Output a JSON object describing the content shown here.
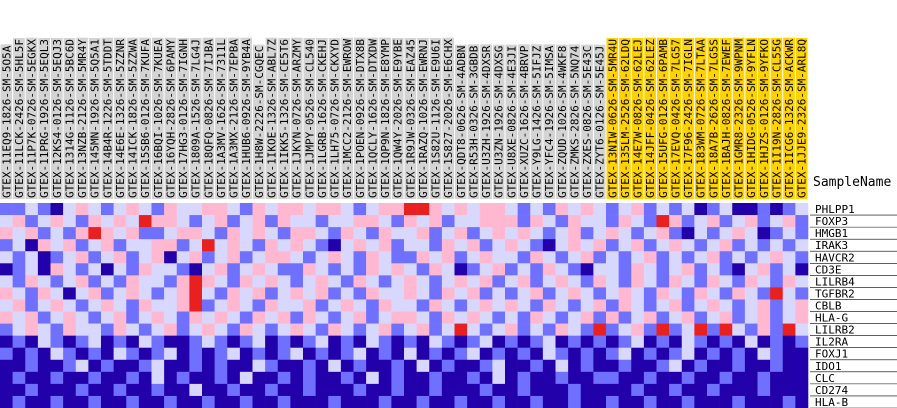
{
  "heatmap": {
    "row_header": "SampleName",
    "columns": [
      "GTEX-11EQ9-1826-SM-5O5A",
      "GTEX-11LCK-2426-SM-5HL5F",
      "GTEX-11P7K-0726-SM-5EGKX",
      "GTEX-11PRG-1926-SM-5EQL3",
      "GTEX-12KS4-0126-SM-5EQJ3",
      "GTEX-1314G-1126-SM-5BC6D",
      "GTEX-13NZB-2126-SM-5MR4Y",
      "GTEX-145MN-1926-SM-5Q5A1",
      "GTEX-14B4R-1226-SM-5TDDT",
      "GTEX-14E6E-1326-SM-5ZZNR",
      "GTEX-14ICK-1826-SM-5ZZWA",
      "GTEX-15SB6-0126-SM-7KUFA",
      "GTEX-16BQI-1026-SM-7KUEA",
      "GTEX-16YQH-2826-SM-6PAMY",
      "GTEX-17HG3-0126-SM-7IGNH",
      "GTEX-1809A-1526-SM-7LG4J",
      "GTEX-18QFQ-0826-SM-7IJBA",
      "GTEX-1A3MV-1626-SM-7311L",
      "GTEX-1A3MX-2126-SM-7EPBA",
      "GTEX-1HUB6-0926-SM-9YB4A",
      "GTEX-1H8W-2226-SM-CGQEC",
      "GTEX-1IKOE-1326-SM-ABL7Z",
      "GTEX-1IKK5-1326-SM-CE5T6",
      "GTEX-1JKYN-0726-SM-ARZMY",
      "GTEX-1JMPY-0526-SM-CL540",
      "GTEX-1LGRB-1626-SM-CKEHJ",
      "GTEX-1LH75-0726-SM-CKXYD",
      "GTEX-1MCC2-2126-SM-EWROW",
      "GTEX-1POEN-0926-SM-DTX8B",
      "GTEX-1QCLY-1626-SM-DTXDW",
      "GTEX-1QP9N-1826-SM-E8YMP",
      "GTEX-1QW4Y-2026-SM-E9YBE",
      "GTEX-1R9JW-0326-SM-EAZ45",
      "GTEX-1RAZQ-1026-SM-EWRNJ",
      "GTEX-1S82U-1126-SM-E9U6I",
      "GTEX-1S827-2026-SM-E6CHX",
      "GTEX-QDT8-0626-SM-4ADBN",
      "GTEX-R53H-0326-SM-3GBDB",
      "GTEX-U3ZH-1926-SM-4DXSR",
      "GTEX-U3ZN-1926-SM-4DXSG",
      "GTEX-U8XE-0826-SM-4E3JI",
      "GTEX-XUZC-1626-SM-4BRVP",
      "GTEX-Y9LG-1426-SM-5IFJZ",
      "GTEX-YFC4-1926-SM-5IMSA",
      "GTEX-ZQUD-1026-SM-4WKF8",
      "GTEX-ZMKS-2826-SM-5NQ74",
      "GTEX-ZXES-0826-SM-5E43C",
      "GTEX-ZYT6-0126-SM-5E45J"
    ],
    "highlighted_columns": [
      "GTEX-13NIW-0626-SM-5MR4U",
      "GTEX-135LM-2526-SM-62LDQ",
      "GTEX-14E7W-0826-SM-62LEJ",
      "GTEX-14JFF-0426-SM-62LEZ",
      "GTEX-15UFG-0126-SM-6PAMB",
      "GTEX-17EVQ-0426-SM-7LG57",
      "GTEX-17F96-2426-SM-7IGLN",
      "GTEX-183WM-0726-SM-7LTAA",
      "GTEX-18A7B-2626-SM-7LG5S",
      "GTEX-1BAJH-0826-SM-7EWEF",
      "GTEX-1GMR8-2326-SM-9WPNM",
      "GTEX-1HIDG-0526-SM-9YFLN",
      "GTEX-1HJZS-0126-SM-9YFKO",
      "GTEX-1I19N-2826-SM-CL55G",
      "GTEX-1ICG6-1326-SM-ACKWR",
      "GTEX-1JJE9-2326-SM-ARL8Q"
    ],
    "colors": {
      "-2": "#2200aa",
      "-1": "#7070ff",
      "0": "#d8d8ff",
      "1": "#ffb8d0",
      "2": "#e82020"
    },
    "rows": [
      {
        "gene": "PHLPP1",
        "values": [
          -1,
          -1,
          0,
          -1,
          -2,
          0,
          1,
          0,
          -1,
          0,
          1,
          0,
          -1,
          1,
          0,
          0,
          1,
          1,
          0,
          -1,
          1,
          0,
          1,
          1,
          0,
          1,
          1,
          0,
          -1,
          0,
          1,
          1,
          2,
          2,
          1,
          0,
          1,
          0,
          1,
          1,
          0,
          -1,
          0,
          -1,
          1,
          0,
          1,
          0,
          -1,
          0,
          1,
          -1,
          0,
          -1,
          0,
          -2,
          -1,
          0,
          -2,
          -2,
          -1,
          -2,
          -1,
          0
        ]
      },
      {
        "gene": "FOXP3",
        "values": [
          0,
          1,
          -1,
          0,
          1,
          0,
          -1,
          1,
          0,
          1,
          0,
          2,
          1,
          1,
          0,
          -1,
          0,
          1,
          -1,
          0,
          1,
          -1,
          1,
          0,
          0,
          -1,
          0,
          0,
          1,
          1,
          0,
          -1,
          1,
          0,
          1,
          -1,
          0,
          0,
          1,
          1,
          1,
          -1,
          1,
          0,
          -1,
          1,
          0,
          0,
          -1,
          1,
          0,
          -1,
          2,
          1,
          -1,
          0,
          1,
          -1,
          0,
          1,
          -1,
          0,
          1,
          -1
        ]
      },
      {
        "gene": "HMGB1",
        "values": [
          1,
          0,
          1,
          -1,
          0,
          -1,
          1,
          2,
          1,
          0,
          1,
          -1,
          -1,
          0,
          1,
          1,
          0,
          -1,
          1,
          0,
          1,
          0,
          -1,
          1,
          1,
          0,
          -1,
          1,
          0,
          -1,
          1,
          0,
          0,
          1,
          -1,
          0,
          1,
          -1,
          0,
          1,
          0,
          1,
          0,
          -1,
          0,
          1,
          -1,
          0,
          1,
          0,
          -1,
          0,
          1,
          -1,
          -2,
          0,
          -1,
          0,
          1,
          0,
          -2,
          -1,
          0,
          -1
        ]
      },
      {
        "gene": "IRAK3",
        "values": [
          -1,
          0,
          -2,
          1,
          0,
          1,
          -1,
          0,
          1,
          -1,
          0,
          0,
          1,
          1,
          -1,
          0,
          2,
          0,
          1,
          0,
          -1,
          1,
          0,
          1,
          0,
          -1,
          -2,
          0,
          1,
          0,
          1,
          -1,
          0,
          0,
          -1,
          1,
          0,
          1,
          -1,
          0,
          1,
          0,
          -1,
          -2,
          0,
          1,
          0,
          1,
          -1,
          0,
          1,
          -1,
          0,
          1,
          0,
          -1,
          0,
          1,
          -1,
          0,
          -1,
          0,
          -1,
          0
        ]
      },
      {
        "gene": "HAVCR2",
        "values": [
          0,
          -1,
          0,
          -2,
          -1,
          0,
          1,
          -1,
          0,
          1,
          -1,
          0,
          1,
          -2,
          0,
          1,
          -1,
          0,
          1,
          -1,
          0,
          1,
          1,
          0,
          -1,
          0,
          1,
          0,
          -1,
          1,
          0,
          -1,
          -1,
          1,
          0,
          1,
          -1,
          0,
          1,
          0,
          0,
          -1,
          1,
          0,
          -1,
          0,
          1,
          -1,
          0,
          -1,
          0,
          1,
          -1,
          0,
          -1,
          0,
          1,
          -1,
          0,
          -1,
          0,
          1,
          0,
          -1
        ]
      },
      {
        "gene": "CD3E",
        "values": [
          -2,
          -1,
          0,
          -2,
          1,
          0,
          -1,
          0,
          -2,
          0,
          -1,
          1,
          0,
          0,
          -1,
          -2,
          0,
          1,
          -1,
          0,
          1,
          0,
          -1,
          -1,
          1,
          0,
          -1,
          0,
          -1,
          1,
          0,
          1,
          0,
          -1,
          1,
          0,
          -2,
          -1,
          0,
          1,
          -1,
          0,
          -1,
          1,
          0,
          -1,
          -2,
          0,
          0,
          -1,
          1,
          0,
          -1,
          0,
          1,
          -1,
          0,
          -1,
          -2,
          0,
          1,
          -1,
          0,
          -2
        ]
      },
      {
        "gene": "LILRB4",
        "values": [
          0,
          -1,
          1,
          0,
          -1,
          0,
          1,
          -1,
          0,
          -1,
          1,
          0,
          0,
          -1,
          1,
          2,
          1,
          0,
          -1,
          1,
          0,
          1,
          0,
          -1,
          0,
          1,
          0,
          -1,
          1,
          0,
          -1,
          0,
          1,
          0,
          -1,
          0,
          1,
          0,
          1,
          -1,
          0,
          1,
          -1,
          0,
          1,
          0,
          -1,
          1,
          0,
          -1,
          1,
          0,
          -1,
          1,
          0,
          -1,
          1,
          0,
          -1,
          1,
          0,
          -1,
          1,
          0
        ]
      },
      {
        "gene": "TGFBR2",
        "values": [
          1,
          0,
          -1,
          1,
          0,
          -2,
          0,
          1,
          -1,
          0,
          1,
          0,
          -1,
          0,
          1,
          2,
          0,
          -1,
          1,
          0,
          1,
          -1,
          0,
          1,
          0,
          1,
          -1,
          0,
          -1,
          1,
          0,
          0,
          1,
          0,
          -1,
          1,
          0,
          1,
          -1,
          0,
          -1,
          0,
          1,
          -1,
          0,
          1,
          0,
          -1,
          0,
          1,
          0,
          -1,
          1,
          0,
          -1,
          1,
          0,
          -1,
          1,
          0,
          -1,
          2,
          0,
          -1
        ]
      },
      {
        "gene": "CBLB",
        "values": [
          0,
          1,
          -1,
          0,
          1,
          0,
          -1,
          0,
          1,
          0,
          -1,
          1,
          0,
          0,
          1,
          2,
          -1,
          0,
          1,
          0,
          -1,
          1,
          0,
          0,
          1,
          -1,
          0,
          1,
          0,
          -1,
          1,
          0,
          0,
          -1,
          1,
          0,
          -1,
          0,
          1,
          0,
          1,
          0,
          -1,
          1,
          0,
          -1,
          0,
          1,
          -1,
          1,
          0,
          -1,
          0,
          1,
          -1,
          0,
          1,
          0,
          -1,
          0,
          1,
          -1,
          0,
          1
        ]
      },
      {
        "gene": "HLA-G",
        "values": [
          1,
          0,
          1,
          -1,
          0,
          1,
          0,
          -1,
          0,
          1,
          -1,
          0,
          1,
          0,
          -1,
          1,
          0,
          1,
          0,
          -1,
          1,
          0,
          1,
          -1,
          1,
          0,
          -1,
          0,
          1,
          -1,
          0,
          1,
          1,
          0,
          -1,
          1,
          0,
          1,
          0,
          -1,
          0,
          -1,
          1,
          0,
          -1,
          0,
          1,
          -1,
          1,
          -1,
          0,
          1,
          -1,
          0,
          1,
          -1,
          0,
          1,
          -1,
          0,
          1,
          -1,
          0,
          1
        ]
      },
      {
        "gene": "LILRB2",
        "values": [
          -1,
          0,
          1,
          0,
          -1,
          1,
          0,
          0,
          -1,
          1,
          0,
          -1,
          0,
          1,
          -1,
          0,
          1,
          0,
          -1,
          1,
          0,
          -1,
          0,
          1,
          0,
          -1,
          1,
          0,
          -1,
          0,
          1,
          -1,
          0,
          1,
          -1,
          0,
          2,
          0,
          -1,
          0,
          1,
          -1,
          0,
          -1,
          1,
          0,
          -1,
          2,
          -1,
          0,
          1,
          -1,
          2,
          -1,
          0,
          2,
          -1,
          2,
          0,
          -1,
          1,
          -1,
          2,
          0
        ]
      },
      {
        "gene": "IL2RA",
        "values": [
          -2,
          -1,
          -2,
          0,
          -1,
          -2,
          -1,
          0,
          -2,
          -1,
          -2,
          0,
          -1,
          -2,
          -2,
          -1,
          0,
          -1,
          -2,
          -1,
          0,
          -2,
          -1,
          -2,
          -1,
          0,
          -2,
          -1,
          -2,
          0,
          -1,
          -2,
          -1,
          -2,
          0,
          -1,
          -2,
          -1,
          0,
          -2,
          -1,
          -2,
          -1,
          0,
          -2,
          -1,
          -2,
          -1,
          -2,
          -1,
          0,
          -2,
          -1,
          -2,
          0,
          -1,
          -2,
          -1,
          -2,
          0,
          -2,
          -1,
          -2,
          -1
        ]
      },
      {
        "gene": "FOXJ1",
        "values": [
          -1,
          -2,
          -1,
          -2,
          0,
          -1,
          -2,
          -1,
          -2,
          0,
          -1,
          -2,
          -1,
          0,
          -2,
          -1,
          -2,
          -1,
          0,
          -2,
          -1,
          -2,
          -1,
          0,
          -2,
          -1,
          -2,
          -1,
          0,
          -2,
          -1,
          -2,
          0,
          -2,
          -1,
          -2,
          -1,
          0,
          -2,
          -1,
          -2,
          -1,
          -2,
          0,
          -1,
          -2,
          -1,
          -2,
          -1,
          0,
          -2,
          -1,
          -2,
          -1,
          0,
          -2,
          -1,
          -2,
          -1,
          -2,
          0,
          -1,
          -2,
          -2
        ]
      },
      {
        "gene": "IDO1",
        "values": [
          -2,
          -2,
          -1,
          -2,
          -2,
          -1,
          0,
          -2,
          -1,
          -2,
          -2,
          -1,
          0,
          -2,
          -2,
          -1,
          -2,
          -1,
          -2,
          -2,
          0,
          -1,
          -2,
          -2,
          -1,
          -2,
          0,
          -2,
          -1,
          -2,
          -2,
          -1,
          -2,
          0,
          -2,
          -1,
          -2,
          -2,
          -1,
          0,
          -2,
          -2,
          -1,
          -2,
          0,
          -2,
          -1,
          -2,
          -2,
          -1,
          -2,
          -2,
          -1,
          0,
          -2,
          -1,
          -2,
          -2,
          -1,
          -2,
          -2,
          -1,
          -2,
          -2
        ]
      },
      {
        "gene": "CLC",
        "values": [
          -2,
          -1,
          -2,
          -2,
          -1,
          -2,
          -2,
          -1,
          -2,
          -2,
          -1,
          -2,
          0,
          -2,
          -1,
          -2,
          -2,
          -1,
          -2,
          0,
          -2,
          -2,
          -1,
          -2,
          -1,
          -2,
          -2,
          -1,
          -2,
          0,
          -2,
          -1,
          -2,
          -2,
          -1,
          -2,
          -2,
          -1,
          -2,
          0,
          -2,
          -1,
          -2,
          -2,
          -1,
          -2,
          -2,
          -1,
          -1,
          -2,
          -2,
          -1,
          -2,
          -2,
          -1,
          -2,
          -2,
          -1,
          -2,
          -2,
          -1,
          -2,
          -2,
          -2
        ]
      },
      {
        "gene": "CD274",
        "values": [
          -2,
          -2,
          -1,
          -2,
          -2,
          -2,
          -1,
          -2,
          -2,
          -1,
          -2,
          -2,
          -1,
          -2,
          -2,
          0,
          -2,
          -2,
          -1,
          -2,
          -2,
          -1,
          -2,
          -2,
          -1,
          -2,
          -2,
          -2,
          -1,
          -2,
          -2,
          -1,
          -2,
          -2,
          -1,
          -2,
          -2,
          -2,
          -1,
          -2,
          -2,
          -1,
          -2,
          -2,
          -2,
          -1,
          -2,
          -2,
          -2,
          -2,
          -1,
          -2,
          -2,
          -1,
          -2,
          -2,
          -1,
          -2,
          -2,
          -2,
          -1,
          -2,
          -2,
          -2
        ]
      },
      {
        "gene": "HLA-B",
        "values": [
          -2,
          -1,
          -2,
          -2,
          -1,
          -2,
          -2,
          -1,
          -2,
          -2,
          -1,
          -2,
          -2,
          -1,
          -2,
          -2,
          -1,
          -2,
          -2,
          -1,
          -2,
          -2,
          -1,
          -2,
          -2,
          -2,
          -1,
          -2,
          -2,
          -2,
          -1,
          -2,
          -2,
          -1,
          -2,
          -2,
          -1,
          -2,
          -2,
          -1,
          -2,
          -2,
          -1,
          -2,
          -2,
          -1,
          -2,
          -2,
          -1,
          -2,
          -2,
          -1,
          -2,
          -2,
          -1,
          -2,
          -2,
          -2,
          -1,
          -2,
          -2,
          -2,
          -1,
          -2
        ]
      }
    ]
  }
}
